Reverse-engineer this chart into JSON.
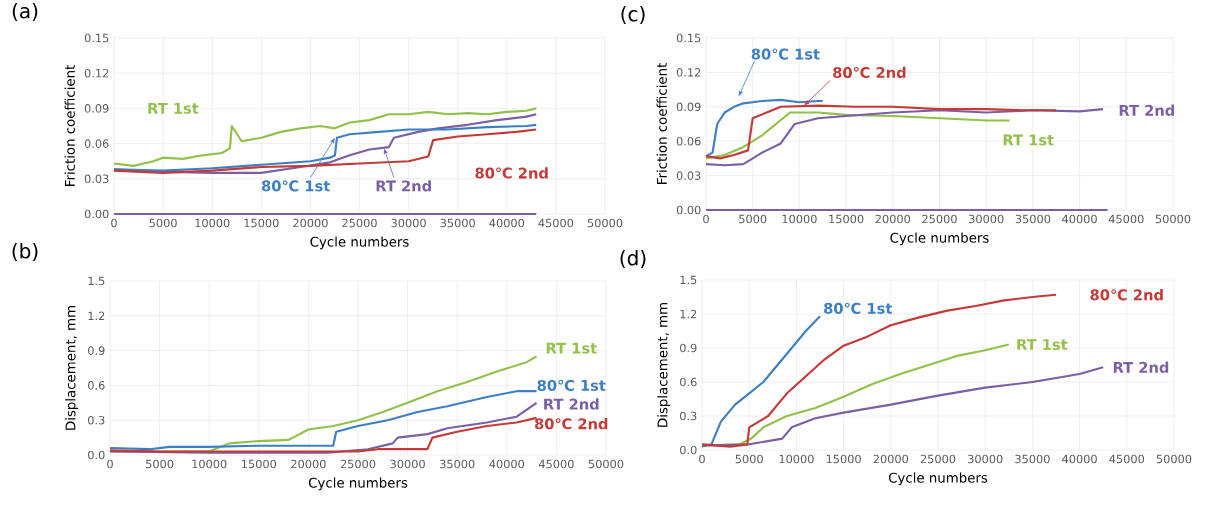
{
  "chart_data": [
    {
      "type": "line",
      "title": "(a)",
      "xlabel": "Cycle numbers",
      "ylabel": "Friction coefficient",
      "grid": true,
      "marker": "none",
      "line_style": "solid",
      "xlim": [
        0,
        50000
      ],
      "xticks": [
        0,
        5000,
        10000,
        15000,
        20000,
        25000,
        30000,
        35000,
        40000,
        45000,
        50000
      ],
      "ylim": [
        0,
        0.15
      ],
      "yticks": [
        {
          "value": 0,
          "label": "0.00"
        },
        {
          "value": 0.03,
          "label": "0.03"
        },
        {
          "value": 0.06,
          "label": "0.06"
        },
        {
          "value": 0.09,
          "label": "0.09"
        },
        {
          "value": 0.12,
          "label": "0.12"
        },
        {
          "value": 0.15,
          "label": "0.15"
        }
      ],
      "series": [
        {
          "name": "RT 1st",
          "color": "#92c04a",
          "x": [
            0,
            2000,
            4000,
            5000,
            7000,
            9000,
            11000,
            11800,
            12000,
            13000,
            15000,
            17000,
            19000,
            21000,
            22500,
            24000,
            26000,
            28000,
            30000,
            32000,
            34000,
            36000,
            38000,
            40000,
            42000,
            43000
          ],
          "values": [
            0.043,
            0.041,
            0.045,
            0.048,
            0.047,
            0.05,
            0.052,
            0.056,
            0.075,
            0.062,
            0.065,
            0.07,
            0.073,
            0.075,
            0.073,
            0.078,
            0.08,
            0.085,
            0.085,
            0.087,
            0.085,
            0.086,
            0.085,
            0.087,
            0.088,
            0.09
          ]
        },
        {
          "name": "RT 2nd",
          "color": "#7b5fa5",
          "x": [
            0,
            5000,
            10000,
            15000,
            19000,
            22000,
            24000,
            26000,
            28000,
            28500,
            31000,
            33000,
            36000,
            39000,
            42000,
            43000
          ],
          "values": [
            0.038,
            0.036,
            0.035,
            0.035,
            0.04,
            0.044,
            0.05,
            0.055,
            0.057,
            0.065,
            0.07,
            0.073,
            0.076,
            0.08,
            0.083,
            0.085
          ]
        },
        {
          "name": "80℃ 1st",
          "color": "#3d7fc4",
          "x": [
            0,
            5000,
            10000,
            15000,
            20000,
            22000,
            22500,
            22700,
            24000,
            27000,
            30000,
            34000,
            38000,
            42000,
            43000
          ],
          "values": [
            0.038,
            0.037,
            0.039,
            0.042,
            0.045,
            0.048,
            0.05,
            0.065,
            0.068,
            0.07,
            0.072,
            0.072,
            0.074,
            0.075,
            0.076
          ]
        },
        {
          "name": "80℃ 2nd",
          "color": "#c33a36",
          "x": [
            0,
            5000,
            10000,
            15000,
            20000,
            25000,
            30000,
            32000,
            32500,
            35000,
            38000,
            41000,
            43000
          ],
          "values": [
            0.037,
            0.035,
            0.037,
            0.04,
            0.041,
            0.043,
            0.045,
            0.049,
            0.063,
            0.066,
            0.068,
            0.07,
            0.072
          ]
        },
        {
          "color": "#7b5fa5",
          "x": [
            0,
            43000
          ],
          "values": [
            0,
            0
          ]
        }
      ]
    },
    {
      "type": "line",
      "title": "(c)",
      "xlabel": "Cycle numbers",
      "ylabel": "Friction coefficient",
      "grid": true,
      "marker": "none",
      "line_style": "solid",
      "xlim": [
        0,
        50000
      ],
      "xticks": [
        0,
        5000,
        10000,
        15000,
        20000,
        25000,
        30000,
        35000,
        40000,
        45000,
        50000
      ],
      "ylim": [
        0,
        0.15
      ],
      "yticks": [
        {
          "value": 0,
          "label": "0.00"
        },
        {
          "value": 0.03,
          "label": "0.03"
        },
        {
          "value": 0.06,
          "label": "0.06"
        },
        {
          "value": 0.09,
          "label": "0.09"
        },
        {
          "value": 0.12,
          "label": "0.12"
        },
        {
          "value": 0.15,
          "label": "0.15"
        }
      ],
      "series": [
        {
          "name": "RT 1st",
          "color": "#92c04a",
          "x": [
            0,
            2000,
            4000,
            6000,
            7500,
            9000,
            12000,
            15000,
            20000,
            25000,
            30000,
            32500
          ],
          "values": [
            0.045,
            0.048,
            0.055,
            0.065,
            0.075,
            0.085,
            0.085,
            0.083,
            0.082,
            0.08,
            0.078,
            0.078
          ]
        },
        {
          "name": "RT 2nd",
          "color": "#7b5fa5",
          "x": [
            0,
            2000,
            4000,
            6000,
            8000,
            9500,
            12000,
            15000,
            20000,
            25000,
            30000,
            35000,
            40000,
            42500
          ],
          "values": [
            0.04,
            0.039,
            0.04,
            0.05,
            0.058,
            0.075,
            0.08,
            0.082,
            0.085,
            0.087,
            0.085,
            0.087,
            0.086,
            0.088
          ]
        },
        {
          "name": "80℃ 1st",
          "color": "#3d7fc4",
          "x": [
            0,
            700,
            1200,
            2000,
            3000,
            4000,
            6000,
            8000,
            10000,
            12000,
            12500
          ],
          "values": [
            0.047,
            0.05,
            0.075,
            0.085,
            0.09,
            0.093,
            0.095,
            0.096,
            0.094,
            0.095,
            0.095
          ]
        },
        {
          "name": "80℃ 2nd",
          "color": "#c33a36",
          "x": [
            0,
            1500,
            3000,
            4500,
            5000,
            6500,
            8000,
            12000,
            16000,
            20000,
            25000,
            30000,
            34000,
            37500
          ],
          "values": [
            0.047,
            0.045,
            0.048,
            0.052,
            0.08,
            0.085,
            0.09,
            0.091,
            0.09,
            0.09,
            0.088,
            0.088,
            0.087,
            0.087
          ]
        },
        {
          "color": "#7b5fa5",
          "x": [
            0,
            43000
          ],
          "values": [
            0,
            0
          ]
        }
      ]
    },
    {
      "type": "line",
      "title": "(b)",
      "xlabel": "Cycle numbers",
      "ylabel": "Displacement, mm",
      "grid": true,
      "marker": "none",
      "line_style": "solid",
      "xlim": [
        0,
        50000
      ],
      "xticks": [
        0,
        5000,
        10000,
        15000,
        20000,
        25000,
        30000,
        35000,
        40000,
        45000,
        50000
      ],
      "ylim": [
        0,
        1.5
      ],
      "yticks": [
        {
          "value": 0,
          "label": "0.0"
        },
        0.3,
        0.6,
        0.9,
        1.2,
        1.5
      ],
      "series": [
        {
          "name": "RT 1st",
          "color": "#92c04a",
          "x": [
            0,
            10000,
            12000,
            15000,
            18000,
            20000,
            22500,
            25000,
            27500,
            30000,
            33000,
            36000,
            39000,
            42000,
            43000
          ],
          "values": [
            0.03,
            0.03,
            0.1,
            0.12,
            0.13,
            0.22,
            0.25,
            0.3,
            0.37,
            0.45,
            0.55,
            0.63,
            0.72,
            0.8,
            0.85
          ]
        },
        {
          "name": "RT 2nd",
          "color": "#7b5fa5",
          "x": [
            0,
            10000,
            22000,
            26000,
            28500,
            29000,
            32000,
            34000,
            38000,
            41000,
            43000
          ],
          "values": [
            0.03,
            0.02,
            0.02,
            0.05,
            0.1,
            0.15,
            0.18,
            0.23,
            0.28,
            0.33,
            0.45
          ]
        },
        {
          "name": "80℃ 1st",
          "color": "#3d7fc4",
          "x": [
            0,
            4000,
            6000,
            10000,
            15000,
            22500,
            22800,
            25000,
            28000,
            31000,
            34000,
            38000,
            41000,
            43000
          ],
          "values": [
            0.06,
            0.05,
            0.07,
            0.07,
            0.08,
            0.08,
            0.2,
            0.25,
            0.3,
            0.37,
            0.42,
            0.5,
            0.55,
            0.55
          ]
        },
        {
          "name": "80℃ 2nd",
          "color": "#c33a36",
          "x": [
            0,
            5000,
            20000,
            25000,
            27000,
            32000,
            32500,
            35000,
            38000,
            41000,
            43000
          ],
          "values": [
            0.04,
            0.03,
            0.03,
            0.03,
            0.05,
            0.05,
            0.15,
            0.2,
            0.25,
            0.28,
            0.32
          ]
        }
      ]
    },
    {
      "type": "line",
      "title": "(d)",
      "xlabel": "Cycle numbers",
      "ylabel": "Displacement, mm",
      "grid": true,
      "marker": "none",
      "line_style": "solid",
      "xlim": [
        0,
        50000
      ],
      "xticks": [
        0,
        5000,
        10000,
        15000,
        20000,
        25000,
        30000,
        35000,
        40000,
        45000,
        50000
      ],
      "ylim": [
        0,
        1.5
      ],
      "yticks": [
        {
          "value": 0,
          "label": "0.0"
        },
        0.3,
        0.6,
        0.9,
        1.2,
        1.5
      ],
      "series": [
        {
          "name": "RT 1st",
          "color": "#92c04a",
          "x": [
            0,
            4000,
            5200,
            6500,
            9000,
            12000,
            15000,
            18000,
            21000,
            24000,
            27000,
            30000,
            32500
          ],
          "values": [
            0.04,
            0.05,
            0.1,
            0.2,
            0.3,
            0.37,
            0.47,
            0.58,
            0.67,
            0.75,
            0.83,
            0.88,
            0.93
          ]
        },
        {
          "name": "RT 2nd",
          "color": "#7b5fa5",
          "x": [
            0,
            5000,
            8500,
            9500,
            12000,
            15000,
            20000,
            25000,
            30000,
            35000,
            40000,
            42500
          ],
          "values": [
            0.04,
            0.05,
            0.1,
            0.2,
            0.28,
            0.33,
            0.4,
            0.48,
            0.55,
            0.6,
            0.67,
            0.73
          ]
        },
        {
          "name": "80℃ 1st",
          "color": "#3d7fc4",
          "x": [
            0,
            1000,
            2000,
            3500,
            5000,
            6500,
            8000,
            9500,
            11000,
            12500
          ],
          "values": [
            0.03,
            0.05,
            0.25,
            0.4,
            0.5,
            0.6,
            0.75,
            0.9,
            1.05,
            1.18
          ]
        },
        {
          "name": "80℃ 2nd",
          "color": "#c33a36",
          "x": [
            0,
            3000,
            4800,
            5000,
            7000,
            9000,
            11000,
            13000,
            15000,
            17500,
            20000,
            23000,
            26000,
            29000,
            32000,
            35000,
            37500
          ],
          "values": [
            0.05,
            0.03,
            0.05,
            0.2,
            0.3,
            0.5,
            0.65,
            0.8,
            0.92,
            1.0,
            1.1,
            1.17,
            1.23,
            1.27,
            1.32,
            1.35,
            1.37
          ]
        }
      ]
    }
  ]
}
